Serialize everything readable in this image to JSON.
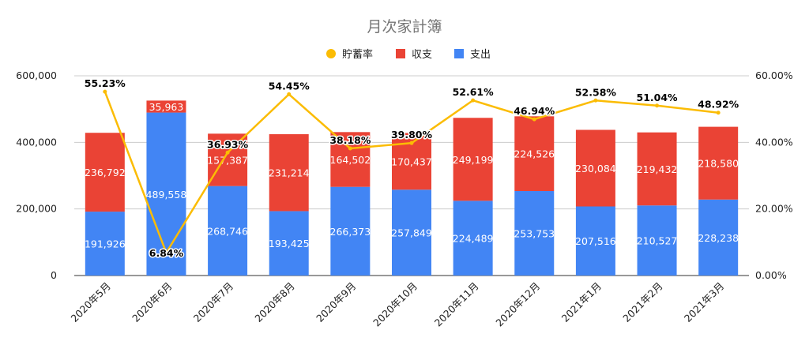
{
  "chart_data": {
    "type": "bar",
    "stacked": true,
    "title": "月次家計簿",
    "categories": [
      "2020年5月",
      "2020年6月",
      "2020年7月",
      "2020年8月",
      "2020年9月",
      "2020年10月",
      "2020年11月",
      "2020年12月",
      "2021年1月",
      "2021年2月",
      "2021年3月"
    ],
    "series": [
      {
        "name": "支出",
        "type": "bar",
        "axis": "left",
        "color": "#4285f4",
        "values": [
          191926,
          489558,
          268746,
          193425,
          266373,
          257849,
          224489,
          253753,
          207516,
          210527,
          228238
        ],
        "labels": [
          "191,926",
          "489,558",
          "268,746",
          "193,425",
          "266,373",
          "257,849",
          "224,489",
          "253,753",
          "207,516",
          "210,527",
          "228,238"
        ]
      },
      {
        "name": "収支",
        "type": "bar",
        "axis": "left",
        "color": "#ea4335",
        "values": [
          236792,
          35963,
          157387,
          231214,
          164502,
          170437,
          249199,
          224526,
          230084,
          219432,
          218580
        ],
        "labels": [
          "236,792",
          "35,963",
          "157,387",
          "231,214",
          "164,502",
          "170,437",
          "249,199",
          "224,526",
          "230,084",
          "219,432",
          "218,580"
        ]
      },
      {
        "name": "貯蓄率",
        "type": "line",
        "axis": "right",
        "color": "#fbbc04",
        "values": [
          55.23,
          6.84,
          36.93,
          54.45,
          38.18,
          39.8,
          52.61,
          46.94,
          52.58,
          51.04,
          48.92
        ],
        "labels": [
          "55.23%",
          "6.84%",
          "36.93%",
          "54.45%",
          "38.18%",
          "39.80%",
          "52.61%",
          "46.94%",
          "52.58%",
          "51.04%",
          "48.92%"
        ]
      }
    ],
    "legend": {
      "placement": "top",
      "order": [
        "貯蓄率",
        "収支",
        "支出"
      ]
    },
    "y_left": {
      "min": 0,
      "max": 600000,
      "ticks": [
        0,
        200000,
        400000,
        600000
      ],
      "tick_labels": [
        "0",
        "200,000",
        "400,000",
        "600,000"
      ]
    },
    "y_right": {
      "min": 0,
      "max": 60,
      "ticks": [
        0,
        20,
        40,
        60
      ],
      "tick_labels": [
        "0.00%",
        "20.00%",
        "40.00%",
        "60.00%"
      ]
    },
    "grid": true
  }
}
